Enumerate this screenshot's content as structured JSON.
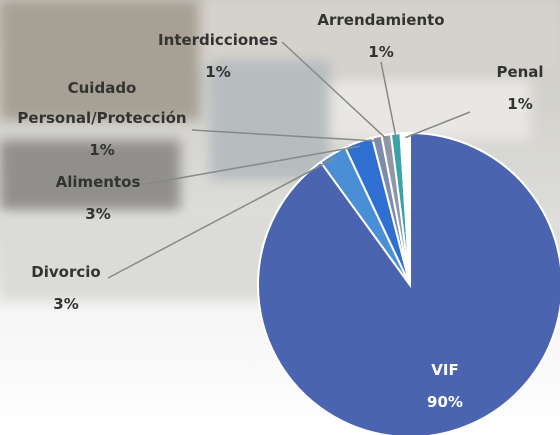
{
  "chart_data": {
    "type": "pie",
    "categories": [
      "VIF",
      "Divorcio",
      "Alimentos",
      "Cuidado Personal/Protección",
      "Interdicciones",
      "Arrendamiento",
      "Penal"
    ],
    "values": [
      90,
      3,
      3,
      1,
      1,
      1,
      1
    ],
    "value_labels": [
      "90%",
      "3%",
      "3%",
      "1%",
      "1%",
      "1%",
      "1%"
    ],
    "colors": [
      "#4a64b0",
      "#4a8fd6",
      "#2f6fd2",
      "#7d8cae",
      "#8e98a6",
      "#3aa2aa",
      "#ffffff"
    ]
  }
}
